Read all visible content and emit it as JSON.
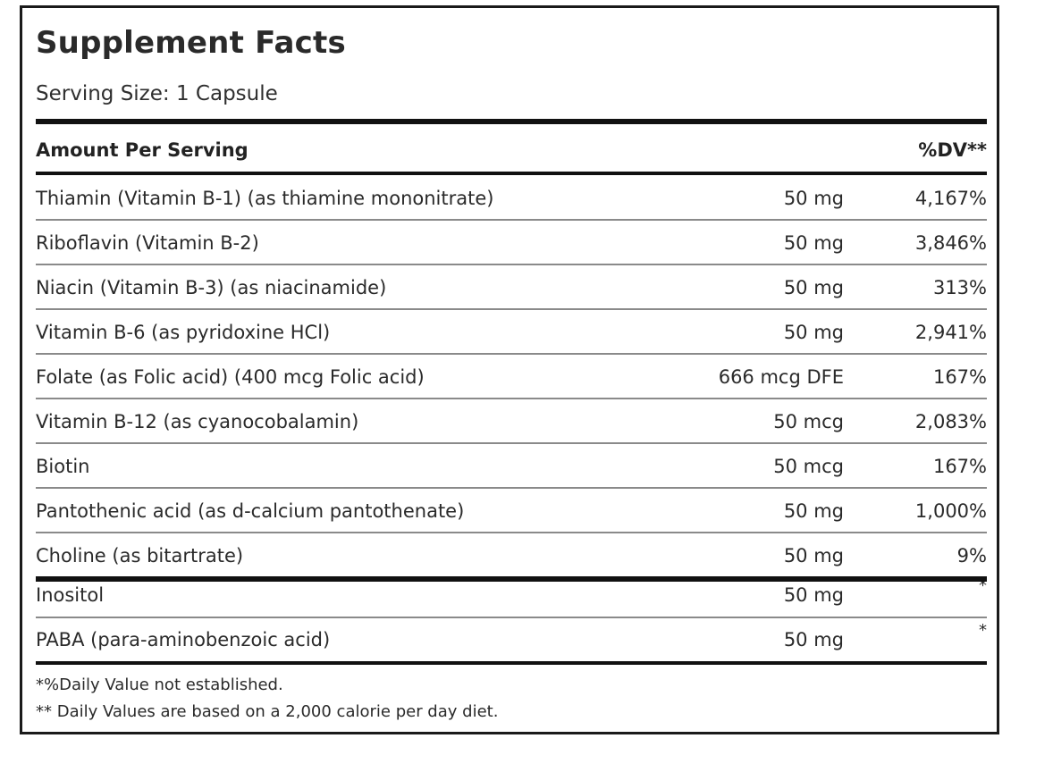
{
  "panel": {
    "title": "Supplement Facts",
    "serving_size": "Serving Size: 1 Capsule"
  },
  "header": {
    "amount_per_serving": "Amount Per Serving",
    "dv_label": "%DV**"
  },
  "rows": [
    {
      "name": "Thiamin (Vitamin B-1) (as thiamine mononitrate)",
      "amount": "50 mg",
      "dv": "4,167%"
    },
    {
      "name": "Riboflavin (Vitamin B-2)",
      "amount": "50 mg",
      "dv": "3,846%"
    },
    {
      "name": "Niacin (Vitamin B-3) (as niacinamide)",
      "amount": "50 mg",
      "dv": "313%"
    },
    {
      "name": "Vitamin B-6 (as pyridoxine HCl)",
      "amount": "50 mg",
      "dv": "2,941%"
    },
    {
      "name": "Folate (as Folic acid) (400 mcg Folic acid)",
      "amount": "666 mcg DFE",
      "dv": "167%"
    },
    {
      "name": "Vitamin B-12 (as cyanocobalamin)",
      "amount": "50 mcg",
      "dv": "2,083%"
    },
    {
      "name": "Biotin",
      "amount": "50 mcg",
      "dv": "167%"
    },
    {
      "name": "Pantothenic acid (as d-calcium pantothenate)",
      "amount": "50 mg",
      "dv": "1,000%"
    },
    {
      "name": "Choline (as bitartrate)",
      "amount": "50 mg",
      "dv": "9%"
    },
    {
      "name": "Inositol",
      "amount": "50 mg",
      "dv": "*"
    },
    {
      "name": "PABA (para-aminobenzoic acid)",
      "amount": "50 mg",
      "dv": "*"
    }
  ],
  "footnotes": {
    "not_established": "*%Daily Value not established.",
    "calorie_basis": "** Daily Values are based on a 2,000 calorie per day diet."
  }
}
